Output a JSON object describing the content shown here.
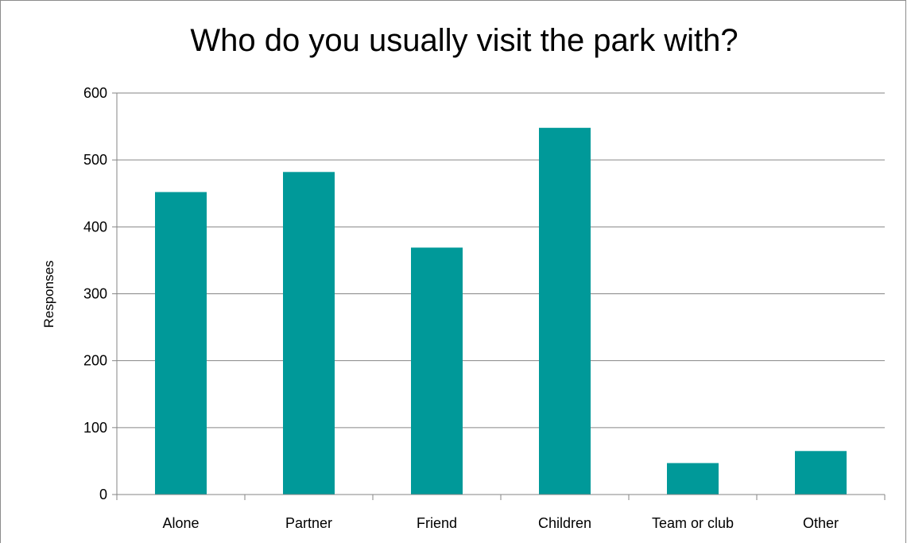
{
  "chart_data": {
    "type": "bar",
    "title": "Who do you usually visit the park with?",
    "xlabel": "",
    "ylabel": "Responses",
    "categories": [
      "Alone",
      "Partner",
      "Friend",
      "Children",
      "Team or club",
      "Other"
    ],
    "values": [
      452,
      482,
      369,
      548,
      47,
      65
    ],
    "ylim": [
      0,
      600
    ],
    "yticks": [
      0,
      100,
      200,
      300,
      400,
      500,
      600
    ],
    "grid": true,
    "legend": "none",
    "bar_color": "#009999",
    "grid_color": "#868686"
  }
}
